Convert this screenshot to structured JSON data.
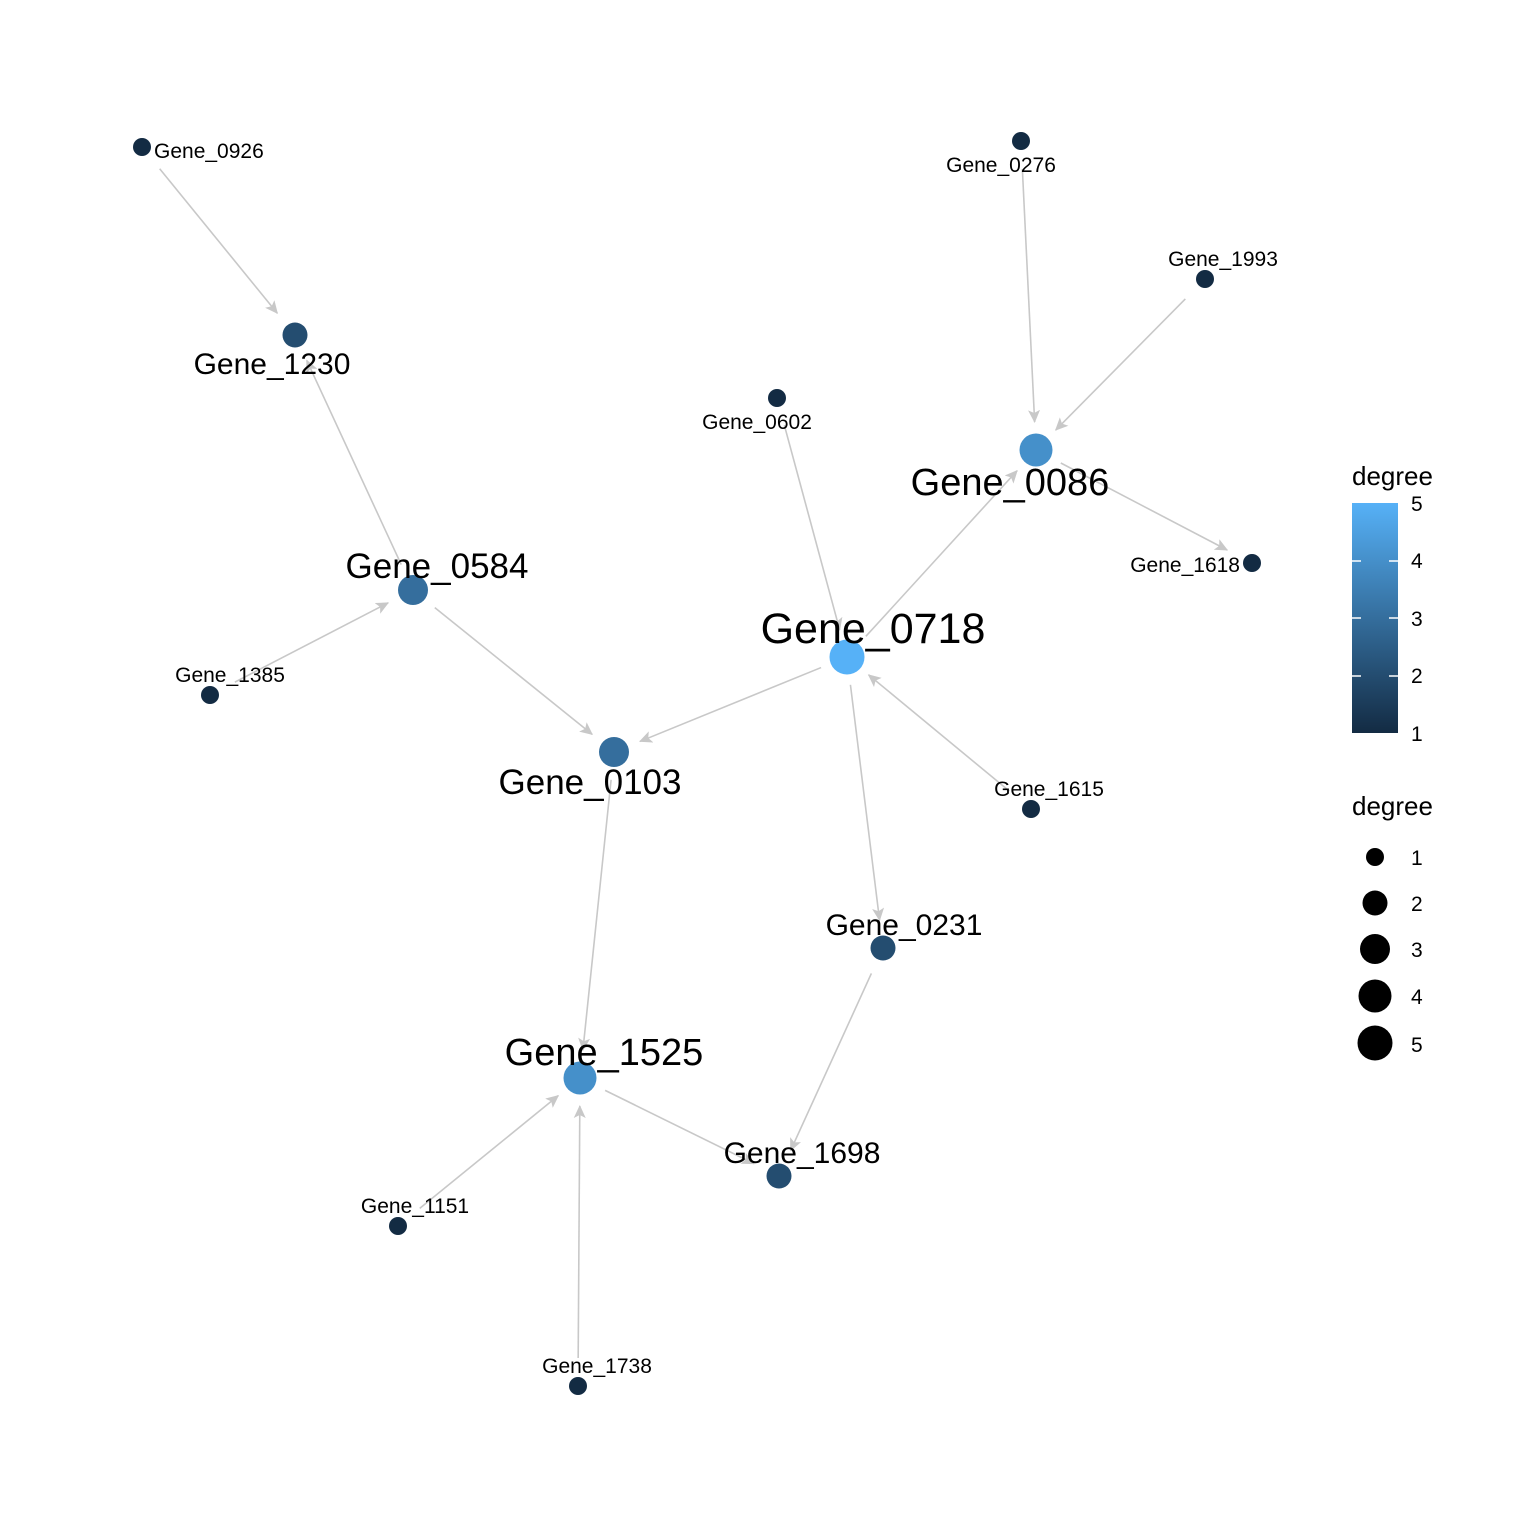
{
  "graph": {
    "nodes": [
      {
        "id": "Gene_0926",
        "degree": 1
      },
      {
        "id": "Gene_1230",
        "degree": 2
      },
      {
        "id": "Gene_0584",
        "degree": 3
      },
      {
        "id": "Gene_1385",
        "degree": 1
      },
      {
        "id": "Gene_0103",
        "degree": 3
      },
      {
        "id": "Gene_0602",
        "degree": 1
      },
      {
        "id": "Gene_0276",
        "degree": 1
      },
      {
        "id": "Gene_1993",
        "degree": 1
      },
      {
        "id": "Gene_0086",
        "degree": 4
      },
      {
        "id": "Gene_1618",
        "degree": 1
      },
      {
        "id": "Gene_0718",
        "degree": 5
      },
      {
        "id": "Gene_1615",
        "degree": 1
      },
      {
        "id": "Gene_0231",
        "degree": 2
      },
      {
        "id": "Gene_1525",
        "degree": 4
      },
      {
        "id": "Gene_1698",
        "degree": 2
      },
      {
        "id": "Gene_1151",
        "degree": 1
      },
      {
        "id": "Gene_1738",
        "degree": 1
      }
    ],
    "edges": [
      {
        "from": "Gene_0926",
        "to": "Gene_1230"
      },
      {
        "from": "Gene_0584",
        "to": "Gene_1230"
      },
      {
        "from": "Gene_0584",
        "to": "Gene_0103"
      },
      {
        "from": "Gene_1385",
        "to": "Gene_0584"
      },
      {
        "from": "Gene_0276",
        "to": "Gene_0086"
      },
      {
        "from": "Gene_1993",
        "to": "Gene_0086"
      },
      {
        "from": "Gene_0086",
        "to": "Gene_1618"
      },
      {
        "from": "Gene_0718",
        "to": "Gene_0086"
      },
      {
        "from": "Gene_0602",
        "to": "Gene_0718"
      },
      {
        "from": "Gene_1615",
        "to": "Gene_0718"
      },
      {
        "from": "Gene_0718",
        "to": "Gene_0103"
      },
      {
        "from": "Gene_0718",
        "to": "Gene_0231"
      },
      {
        "from": "Gene_0103",
        "to": "Gene_1525"
      },
      {
        "from": "Gene_0231",
        "to": "Gene_1698"
      },
      {
        "from": "Gene_1525",
        "to": "Gene_1698"
      },
      {
        "from": "Gene_1151",
        "to": "Gene_1525"
      },
      {
        "from": "Gene_1738",
        "to": "Gene_1525"
      }
    ]
  },
  "legend": {
    "color_title": "degree",
    "color_ticks": [
      "5",
      "4",
      "3",
      "2",
      "1"
    ],
    "color_low": "#132B43",
    "color_high": "#56B1F7",
    "size_title": "degree",
    "size_ticks": [
      "1",
      "2",
      "3",
      "4",
      "5"
    ]
  },
  "colors": {
    "edge": "#c8c8c8",
    "background": "#ffffff"
  }
}
